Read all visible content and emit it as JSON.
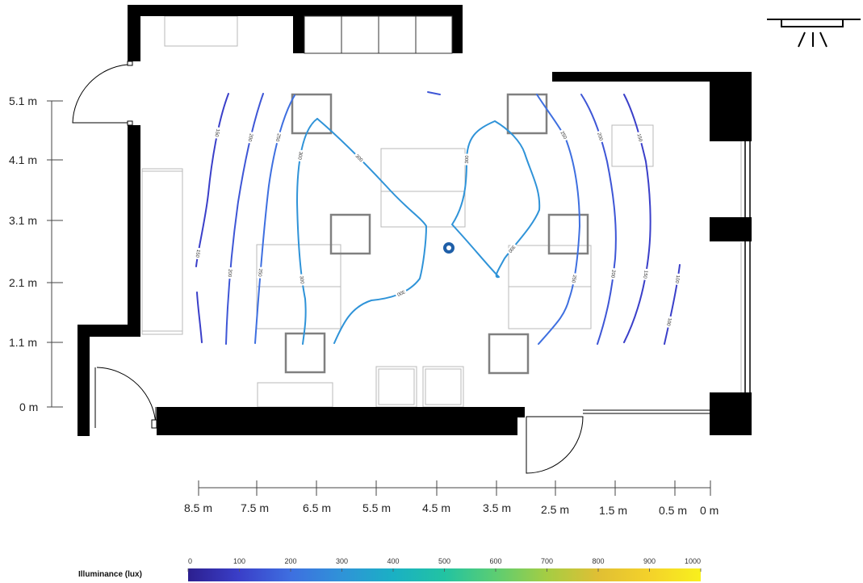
{
  "y_axis": {
    "labels": [
      "5.1 m",
      "4.1 m",
      "3.1 m",
      "2.1 m",
      "1.1 m",
      "0 m"
    ]
  },
  "x_axis": {
    "labels": [
      "8.5 m",
      "7.5 m",
      "6.5 m",
      "5.5 m",
      "4.5 m",
      "3.5 m",
      "2.5 m",
      "1.5 m",
      "0.5 m",
      "0 m"
    ]
  },
  "legend": {
    "title": "Illuminance (lux)",
    "ticks": [
      "0",
      "100",
      "200",
      "300",
      "400",
      "500",
      "600",
      "700",
      "800",
      "900",
      "1000"
    ],
    "colors": [
      "#2c1f8f",
      "#3a3fc9",
      "#3e6fe0",
      "#2f93d8",
      "#1ab0c4",
      "#22c3a2",
      "#5ccd72",
      "#a5cd43",
      "#e0bf34",
      "#f4d22a",
      "#f8f01d"
    ]
  },
  "contours": [
    {
      "id": "c-left-1",
      "label": "150",
      "color": "#3a3fc9"
    },
    {
      "id": "c-left-2",
      "label": "200",
      "color": "#3e56d6"
    },
    {
      "id": "c-left-3",
      "label": "250",
      "color": "#3e6fe0"
    },
    {
      "id": "c-left-4",
      "label": "300",
      "color": "#2f93d8"
    },
    {
      "id": "c-center-left",
      "label": "300",
      "color": "#2f93d8"
    },
    {
      "id": "c-center-right",
      "label": "300",
      "color": "#2f93d8"
    },
    {
      "id": "c-right-1",
      "label": "250",
      "color": "#3e6fe0"
    },
    {
      "id": "c-right-2",
      "label": "200",
      "color": "#3e56d6"
    },
    {
      "id": "c-right-3",
      "label": "150",
      "color": "#3a3fc9"
    },
    {
      "id": "c-right-4",
      "label": "100",
      "color": "#3a3fc9"
    },
    {
      "id": "c-top",
      "label": "",
      "color": "#3e56d6"
    }
  ],
  "luminaire_icon": "ceiling-light-icon",
  "measurement_point_icon": "measurement-point-icon"
}
